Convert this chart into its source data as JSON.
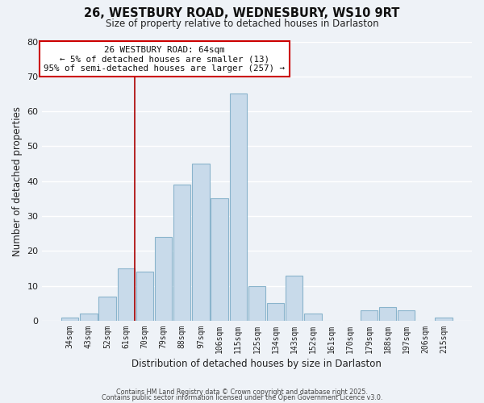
{
  "title": "26, WESTBURY ROAD, WEDNESBURY, WS10 9RT",
  "subtitle": "Size of property relative to detached houses in Darlaston",
  "xlabel": "Distribution of detached houses by size in Darlaston",
  "ylabel": "Number of detached properties",
  "bar_color": "#c8daea",
  "bar_edge_color": "#8ab4cc",
  "categories": [
    "34sqm",
    "43sqm",
    "52sqm",
    "61sqm",
    "70sqm",
    "79sqm",
    "88sqm",
    "97sqm",
    "106sqm",
    "115sqm",
    "125sqm",
    "134sqm",
    "143sqm",
    "152sqm",
    "161sqm",
    "170sqm",
    "179sqm",
    "188sqm",
    "197sqm",
    "206sqm",
    "215sqm"
  ],
  "values": [
    1,
    2,
    7,
    15,
    14,
    24,
    39,
    45,
    35,
    65,
    10,
    5,
    13,
    2,
    0,
    0,
    3,
    4,
    3,
    0,
    1
  ],
  "ylim": [
    0,
    80
  ],
  "yticks": [
    0,
    10,
    20,
    30,
    40,
    50,
    60,
    70,
    80
  ],
  "annotation_line1": "26 WESTBURY ROAD: 64sqm",
  "annotation_line2": "← 5% of detached houses are smaller (13)",
  "annotation_line3": "95% of semi-detached houses are larger (257) →",
  "vline_color": "#aa0000",
  "box_facecolor": "#ffffff",
  "box_edgecolor": "#cc0000",
  "background_color": "#eef2f7",
  "grid_color": "#ffffff",
  "footer_line1": "Contains HM Land Registry data © Crown copyright and database right 2025.",
  "footer_line2": "Contains public sector information licensed under the Open Government Licence v3.0."
}
